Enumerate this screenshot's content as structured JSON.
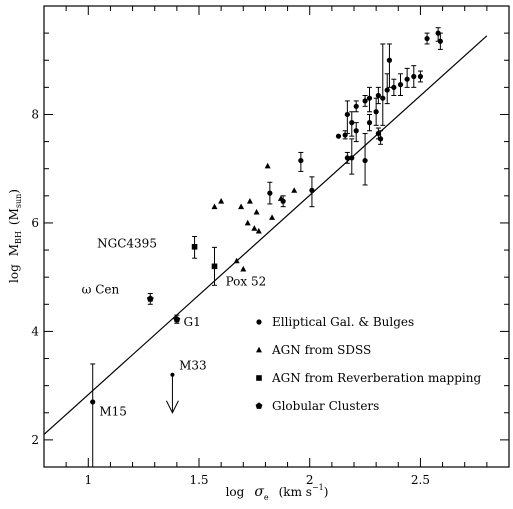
{
  "chart_data": {
    "type": "scatter",
    "title": "",
    "xlim": [
      0.8,
      2.9
    ],
    "ylim": [
      1.5,
      10.0
    ],
    "x_ticks": [
      {
        "value": 1,
        "label": "1"
      },
      {
        "value": 1.5,
        "label": "1.5"
      },
      {
        "value": 2,
        "label": "2"
      },
      {
        "value": 2.5,
        "label": "2.5"
      }
    ],
    "y_ticks": [
      {
        "value": 2,
        "label": "2"
      },
      {
        "value": 4,
        "label": "4"
      },
      {
        "value": 6,
        "label": "6"
      },
      {
        "value": 8,
        "label": "8"
      }
    ],
    "xlabel": {
      "pre": "log",
      "symbol": "σ",
      "sub": "e",
      "post": "(km s",
      "sup": "−1",
      "close": ")"
    },
    "ylabel": {
      "pre": "log",
      "symbol": "M",
      "sub": "BH",
      "post": "(M",
      "sub2": "sun",
      "close": ")"
    },
    "fit_line": {
      "x": [
        0.8,
        2.8
      ],
      "y": [
        2.1,
        9.45
      ]
    },
    "legend": [
      {
        "marker": "circle",
        "label": "Elliptical Gal. & Bulges"
      },
      {
        "marker": "triangle",
        "label": "AGN from SDSS"
      },
      {
        "marker": "square",
        "label": "AGN from Reverberation mapping"
      },
      {
        "marker": "pentagon",
        "label": "Globular Clusters"
      }
    ],
    "series": [
      {
        "marker": "circle",
        "points": [
          {
            "x": 2.13,
            "y": 7.6,
            "lo": 7.6,
            "hi": 7.6
          },
          {
            "x": 2.16,
            "y": 7.62,
            "lo": 7.55,
            "hi": 7.7
          },
          {
            "x": 2.17,
            "y": 7.2,
            "lo": 7.1,
            "hi": 7.3
          },
          {
            "x": 2.17,
            "y": 8.0,
            "lo": 7.65,
            "hi": 8.25
          },
          {
            "x": 2.19,
            "y": 7.85,
            "lo": 7.6,
            "hi": 8.05
          },
          {
            "x": 2.19,
            "y": 7.2,
            "lo": 6.9,
            "hi": 7.55
          },
          {
            "x": 2.21,
            "y": 7.7,
            "lo": 7.5,
            "hi": 7.85
          },
          {
            "x": 2.21,
            "y": 8.15,
            "lo": 8.05,
            "hi": 8.25
          },
          {
            "x": 2.25,
            "y": 7.15,
            "lo": 6.7,
            "hi": 7.65
          },
          {
            "x": 2.25,
            "y": 8.25,
            "lo": 8.15,
            "hi": 8.35
          },
          {
            "x": 2.27,
            "y": 7.85,
            "lo": 7.7,
            "hi": 8.0
          },
          {
            "x": 2.27,
            "y": 8.3,
            "lo": 8.05,
            "hi": 8.5
          },
          {
            "x": 2.3,
            "y": 8.05,
            "lo": 7.8,
            "hi": 8.3
          },
          {
            "x": 2.31,
            "y": 8.35,
            "lo": 8.2,
            "hi": 8.5
          },
          {
            "x": 2.31,
            "y": 7.65,
            "lo": 7.55,
            "hi": 7.75
          },
          {
            "x": 2.32,
            "y": 7.55,
            "lo": 7.45,
            "hi": 7.7
          },
          {
            "x": 2.33,
            "y": 8.3,
            "lo": 7.8,
            "hi": 9.3
          },
          {
            "x": 2.35,
            "y": 8.45,
            "lo": 8.2,
            "hi": 8.75
          },
          {
            "x": 2.36,
            "y": 9.0,
            "lo": 8.5,
            "hi": 9.3
          },
          {
            "x": 2.38,
            "y": 8.5,
            "lo": 8.35,
            "hi": 8.65
          },
          {
            "x": 2.41,
            "y": 8.55,
            "lo": 8.35,
            "hi": 8.75
          },
          {
            "x": 2.44,
            "y": 8.65,
            "lo": 8.5,
            "hi": 8.85
          },
          {
            "x": 2.47,
            "y": 8.7,
            "lo": 8.5,
            "hi": 8.9
          },
          {
            "x": 2.5,
            "y": 8.7,
            "lo": 8.6,
            "hi": 8.8
          },
          {
            "x": 2.53,
            "y": 9.4,
            "lo": 9.3,
            "hi": 9.5
          },
          {
            "x": 2.58,
            "y": 9.5,
            "lo": 9.35,
            "hi": 9.6
          },
          {
            "x": 2.59,
            "y": 9.35,
            "lo": 9.2,
            "hi": 9.5
          },
          {
            "x": 1.82,
            "y": 6.55,
            "lo": 6.35,
            "hi": 6.75
          },
          {
            "x": 1.88,
            "y": 6.4,
            "lo": 6.3,
            "hi": 6.5
          },
          {
            "x": 1.96,
            "y": 7.15,
            "lo": 6.95,
            "hi": 7.3
          },
          {
            "x": 2.01,
            "y": 6.6,
            "lo": 6.3,
            "hi": 6.85
          },
          {
            "x": 1.02,
            "y": 2.7,
            "lo": 1.5,
            "hi": 3.4
          }
        ]
      },
      {
        "marker": "triangle",
        "points": [
          {
            "x": 1.57,
            "y": 6.3
          },
          {
            "x": 1.6,
            "y": 6.4
          },
          {
            "x": 1.69,
            "y": 6.3
          },
          {
            "x": 1.73,
            "y": 6.4
          },
          {
            "x": 1.72,
            "y": 6.0
          },
          {
            "x": 1.75,
            "y": 5.9
          },
          {
            "x": 1.76,
            "y": 6.2
          },
          {
            "x": 1.77,
            "y": 5.85
          },
          {
            "x": 1.81,
            "y": 7.05
          },
          {
            "x": 1.83,
            "y": 6.1
          },
          {
            "x": 1.87,
            "y": 6.45
          },
          {
            "x": 1.93,
            "y": 6.6
          },
          {
            "x": 1.67,
            "y": 5.3
          },
          {
            "x": 1.7,
            "y": 5.15
          }
        ]
      },
      {
        "marker": "square",
        "points": [
          {
            "x": 1.48,
            "y": 5.56,
            "lo": 5.35,
            "hi": 5.75
          },
          {
            "x": 1.57,
            "y": 5.2,
            "lo": 4.85,
            "hi": 5.55
          }
        ]
      },
      {
        "marker": "pentagon",
        "points": [
          {
            "x": 1.28,
            "y": 4.6,
            "lo": 4.5,
            "hi": 4.7
          },
          {
            "x": 1.4,
            "y": 4.22,
            "lo": 4.15,
            "hi": 4.3
          }
        ]
      }
    ],
    "upper_limit": {
      "x": 1.38,
      "y": 3.2,
      "arrow_to": 2.5
    },
    "annotations": [
      {
        "text": "NGC4395",
        "x": 1.04,
        "y": 5.55
      },
      {
        "text": "Pox 52",
        "x": 1.62,
        "y": 4.85
      },
      {
        "text": "ω Cen",
        "x": 0.97,
        "y": 4.7
      },
      {
        "text": "G1",
        "x": 1.43,
        "y": 4.1
      },
      {
        "text": "M33",
        "x": 1.41,
        "y": 3.3
      },
      {
        "text": "M15",
        "x": 1.05,
        "y": 2.45
      }
    ]
  }
}
